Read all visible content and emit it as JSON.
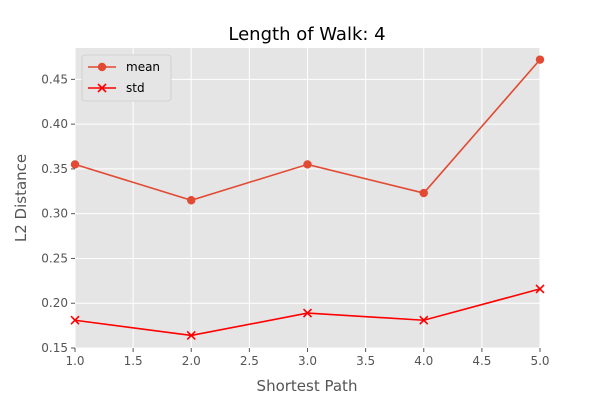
{
  "chart_data": {
    "type": "line",
    "title": "Length of Walk: 4",
    "xlabel": "Shortest Path",
    "ylabel": "L2 Distance",
    "x": [
      1.0,
      2.0,
      3.0,
      4.0,
      5.0
    ],
    "xlim": [
      1.0,
      5.0
    ],
    "ylim": [
      0.15,
      0.485
    ],
    "xticks": [
      "1.0",
      "1.5",
      "2.0",
      "2.5",
      "3.0",
      "3.5",
      "4.0",
      "4.5",
      "5.0"
    ],
    "yticks": [
      "0.15",
      "0.20",
      "0.25",
      "0.30",
      "0.35",
      "0.40",
      "0.45"
    ],
    "grid": true,
    "legend_position": "top-left",
    "series": [
      {
        "name": "mean",
        "values": [
          0.355,
          0.315,
          0.355,
          0.323,
          0.472
        ],
        "color": "#E24A33",
        "marker": "circle"
      },
      {
        "name": "std",
        "values": [
          0.181,
          0.164,
          0.189,
          0.181,
          0.216
        ],
        "color": "#FF0000",
        "marker": "x"
      }
    ]
  }
}
